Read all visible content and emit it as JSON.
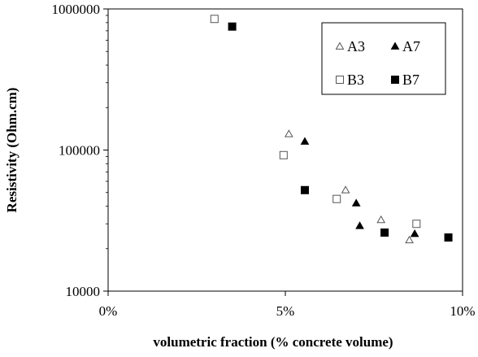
{
  "chart_data": {
    "type": "scatter",
    "xlabel": "volumetric fraction (% concrete volume)",
    "ylabel": "Resistivity (Ohm.cm)",
    "x_unit": "%",
    "xlim": [
      0,
      10
    ],
    "ylim": [
      10000,
      1000000
    ],
    "y_scale": "log",
    "x_ticks": [
      0,
      5,
      10
    ],
    "x_tick_labels": [
      "0%",
      "5%",
      "10%"
    ],
    "y_ticks": [
      10000,
      100000,
      1000000
    ],
    "y_tick_labels": [
      "10000",
      "100000",
      "1000000"
    ],
    "grid": false,
    "legend_position": "top-right",
    "series": [
      {
        "name": "A3",
        "marker": "triangle-open",
        "x": [
          5.1,
          6.7,
          7.7,
          8.5
        ],
        "y": [
          130000,
          52000,
          32000,
          23000
        ]
      },
      {
        "name": "A7",
        "marker": "triangle-filled",
        "x": [
          5.55,
          7.0,
          7.1,
          8.65
        ],
        "y": [
          115000,
          42000,
          29000,
          25500
        ]
      },
      {
        "name": "B3",
        "marker": "square-open",
        "x": [
          3.0,
          4.95,
          6.45,
          8.7
        ],
        "y": [
          850000,
          92000,
          45000,
          30000
        ]
      },
      {
        "name": "B7",
        "marker": "square-filled",
        "x": [
          3.5,
          5.55,
          7.8,
          9.6
        ],
        "y": [
          750000,
          52000,
          26000,
          24000
        ]
      }
    ]
  }
}
